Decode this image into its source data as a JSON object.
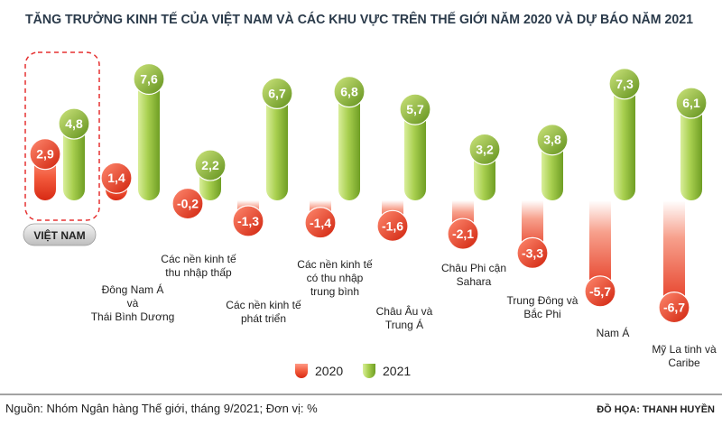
{
  "colors": {
    "red": "#e8321e",
    "red_light": "#f7806a",
    "green": "#7fae2e",
    "green_light": "#d3e98a",
    "title": "#2a3a4a",
    "accent_border": "#e53030"
  },
  "chart_data": {
    "type": "bar",
    "title": "TĂNG TRƯỞNG KINH TẾ CỦA VIỆT NAM VÀ CÁC KHU VỰC TRÊN THẾ GIỚI NĂM 2020 VÀ DỰ BÁO NĂM 2021",
    "unit": "%",
    "categories": [
      [
        "VIỆT NAM"
      ],
      [
        "Đông Nam Á",
        "và",
        "Thái Bình Dương"
      ],
      [
        "Các nền kinh tế",
        "thu nhập thấp"
      ],
      [
        "Các nền kinh tế",
        "phát triển"
      ],
      [
        "Các nền kinh tế",
        "có thu nhập",
        "trung bình"
      ],
      [
        "Châu Âu và",
        "Trung Á"
      ],
      [
        "Châu Phi cận",
        "Sahara"
      ],
      [
        "Trung Đông và",
        "Bắc Phi"
      ],
      [
        "Nam Á"
      ],
      [
        "Mỹ La tinh và",
        "Caribe"
      ]
    ],
    "series": [
      {
        "name": "2020",
        "values": [
          2.9,
          1.4,
          -0.2,
          -1.3,
          -1.4,
          -1.6,
          -2.1,
          -3.3,
          -5.7,
          -6.7
        ],
        "labels": [
          "2,9",
          "1,4",
          "-0,2",
          "-1,3",
          "-1,4",
          "-1,6",
          "-2,1",
          "-3,3",
          "-5,7",
          "-6,7"
        ]
      },
      {
        "name": "2021",
        "values": [
          4.8,
          7.6,
          2.2,
          6.7,
          6.8,
          5.7,
          3.2,
          3.8,
          7.3,
          6.1
        ],
        "labels": [
          "4,8",
          "7,6",
          "2,2",
          "6,7",
          "6,8",
          "5,7",
          "3,2",
          "3,8",
          "7,3",
          "6,1"
        ]
      }
    ],
    "highlight_category": "VIỆT NAM"
  },
  "legend": [
    "2020",
    "2021"
  ],
  "footer": {
    "source": "Nguồn: Nhóm Ngân hàng Thế giới, tháng 9/2021; Đơn vị: %",
    "credit": "ĐỒ HỌA: THANH HUYỀN"
  }
}
